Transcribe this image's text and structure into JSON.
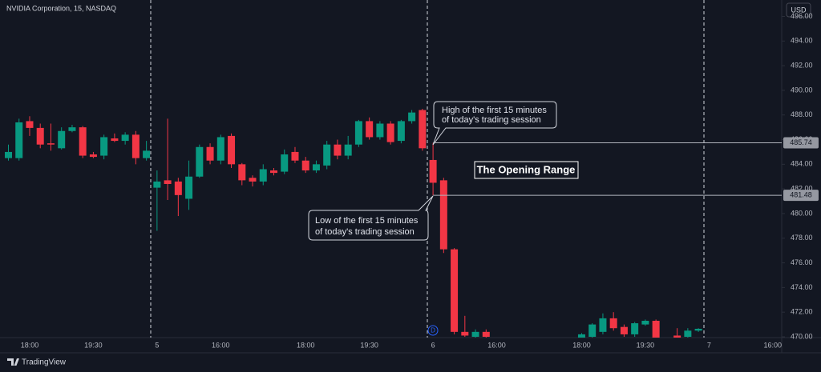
{
  "chart_data": {
    "type": "candlestick",
    "title": "NVIDIA Corporation, 15, NASDAQ",
    "currency": "USD",
    "categories": [
      null,
      null,
      "18:00",
      null,
      null,
      null,
      null,
      null,
      "19:30",
      null,
      null,
      null,
      null,
      null,
      "5",
      null,
      null,
      null,
      null,
      null,
      "16:00",
      null,
      null,
      null,
      null,
      null,
      null,
      null,
      "18:00",
      null,
      null,
      null,
      null,
      null,
      "19:30",
      null,
      null,
      null,
      null,
      null,
      "6",
      null,
      null,
      null,
      null,
      null,
      "16:00",
      null,
      null,
      null,
      null,
      null,
      null,
      null,
      "18:00",
      null,
      null,
      null,
      null,
      null,
      "19:30",
      null,
      null,
      null,
      null,
      null,
      "7",
      null,
      null,
      null,
      null,
      null,
      "16:00"
    ],
    "open": [
      484.5,
      484.5,
      487.5,
      486.95,
      485.7,
      485.3,
      486.7,
      487.0,
      484.8,
      484.7,
      486.1,
      485.9,
      486.4,
      484.5,
      482.1,
      482.7,
      482.6,
      481.2,
      483.0,
      485.4,
      484.3,
      486.3,
      484.0,
      482.9,
      482.6,
      483.5,
      483.4,
      485.0,
      484.3,
      483.5,
      483.9,
      485.6,
      484.7,
      485.6,
      487.5,
      486.2,
      487.3,
      485.9,
      487.5,
      488.4,
      484.35,
      482.7,
      477.1,
      470.4,
      470.0,
      470.4,
      null,
      null,
      null,
      null,
      null,
      null,
      null,
      null,
      469.9,
      470.0,
      470.4,
      471.5,
      470.8,
      470.2,
      471.0,
      471.3,
      null,
      470.1,
      470.0,
      470.5,
      null,
      null,
      null,
      null,
      null,
      null,
      null
    ],
    "high": [
      485.6,
      487.7,
      487.9,
      487.3,
      487.3,
      487.0,
      487.2,
      487.1,
      485.0,
      486.4,
      486.5,
      486.6,
      486.7,
      485.9,
      483.5,
      487.7,
      482.9,
      484.3,
      485.6,
      485.7,
      486.4,
      486.5,
      484.1,
      483.1,
      484.0,
      483.7,
      485.2,
      485.4,
      484.6,
      484.3,
      485.9,
      486.0,
      486.3,
      487.6,
      487.8,
      487.5,
      487.5,
      487.6,
      488.4,
      488.5,
      485.74,
      482.9,
      477.2,
      471.7,
      470.6,
      470.6,
      null,
      null,
      null,
      null,
      null,
      null,
      null,
      null,
      470.3,
      471.1,
      471.9,
      472.0,
      471.0,
      471.2,
      471.4,
      471.4,
      null,
      470.7,
      470.7,
      470.7,
      null,
      null,
      null,
      null,
      null,
      null,
      null
    ],
    "low": [
      484.3,
      484.3,
      486.3,
      485.3,
      485.1,
      485.2,
      486.6,
      484.5,
      484.5,
      484.4,
      485.8,
      485.6,
      484.0,
      484.3,
      478.6,
      481.1,
      479.8,
      480.3,
      482.9,
      484.0,
      484.0,
      483.7,
      482.3,
      482.2,
      482.3,
      483.1,
      483.2,
      484.1,
      483.3,
      483.3,
      483.6,
      484.4,
      484.4,
      485.4,
      486.0,
      486.0,
      485.6,
      485.7,
      487.3,
      485.1,
      481.48,
      476.8,
      470.2,
      470.0,
      469.9,
      469.9,
      null,
      null,
      null,
      null,
      null,
      null,
      null,
      null,
      469.8,
      469.9,
      470.2,
      470.5,
      470.0,
      470.0,
      470.9,
      469.7,
      null,
      469.7,
      469.9,
      470.4,
      null,
      null,
      null,
      null,
      null,
      null,
      null
    ],
    "close": [
      485.0,
      487.4,
      486.95,
      485.6,
      485.6,
      486.7,
      487.0,
      484.7,
      484.6,
      486.2,
      485.9,
      486.4,
      484.5,
      485.1,
      482.6,
      482.4,
      481.5,
      483.0,
      485.4,
      484.3,
      486.2,
      484.0,
      482.7,
      482.6,
      483.6,
      483.3,
      484.8,
      484.3,
      483.5,
      484.0,
      485.6,
      484.7,
      485.6,
      487.5,
      486.2,
      487.3,
      485.8,
      487.5,
      488.2,
      485.3,
      482.5,
      477.1,
      470.4,
      470.1,
      470.4,
      470.0,
      null,
      null,
      null,
      null,
      null,
      null,
      null,
      null,
      470.2,
      471.0,
      471.5,
      470.7,
      470.2,
      471.1,
      471.3,
      469.8,
      null,
      469.9,
      470.5,
      470.65,
      null,
      null,
      null,
      null,
      null,
      null,
      null
    ],
    "up_color": "#089981",
    "down_color": "#f23645",
    "ylim": [
      470,
      497.33
    ],
    "yticks": [
      {
        "value": 470,
        "label": "470.00"
      },
      {
        "value": 472,
        "label": "472.00"
      },
      {
        "value": 474,
        "label": "474.00"
      },
      {
        "value": 476,
        "label": "476.00"
      },
      {
        "value": 478,
        "label": "478.00"
      },
      {
        "value": 480,
        "label": "480.00"
      },
      {
        "value": 482,
        "label": "482.00"
      },
      {
        "value": 484,
        "label": "484.00"
      },
      {
        "value": 486,
        "label": "486.00"
      },
      {
        "value": 488,
        "label": "488.00"
      },
      {
        "value": 490,
        "label": "490.00"
      },
      {
        "value": 492,
        "label": "492.00"
      },
      {
        "value": 494,
        "label": "494.00"
      },
      {
        "value": 496,
        "label": "496.00"
      }
    ],
    "levels": [
      485.74,
      481.48
    ],
    "annotations": {
      "high_note": [
        "High of the first 15 minutes",
        "of today's trading session"
      ],
      "low_note": [
        "Low of the first 15 minutes",
        "of today's trading session"
      ],
      "range_label": "The Opening Range",
      "marker": "D"
    },
    "brand": "TradingView"
  }
}
